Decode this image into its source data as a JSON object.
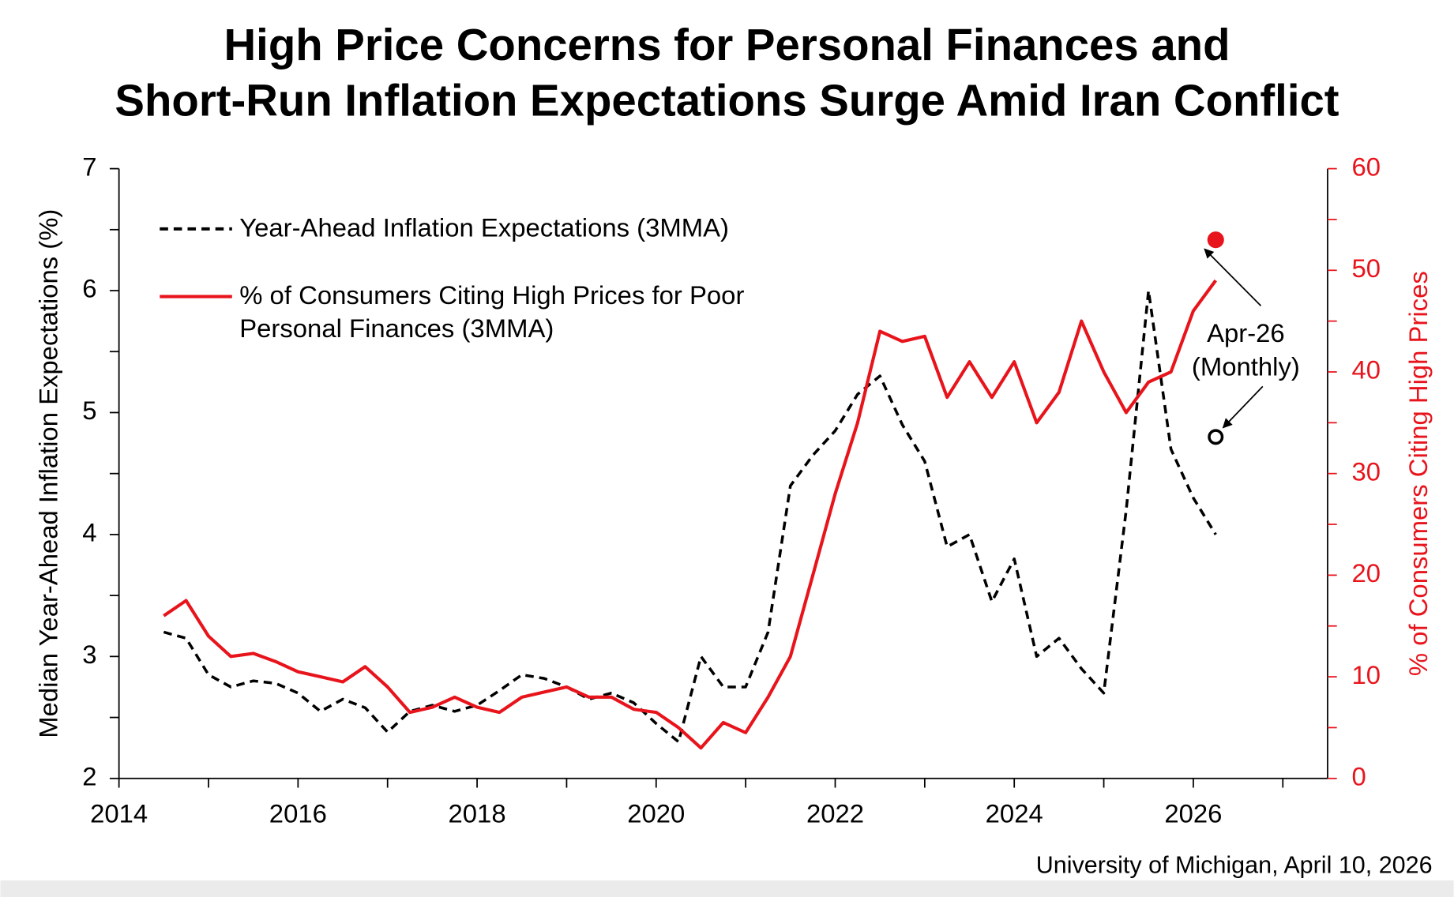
{
  "chart_data": {
    "type": "line",
    "title": [
      "High Price Concerns for Personal Finances and",
      "Short-Run Inflation Expectations Surge Amid Iran Conflict"
    ],
    "y_label": "Median Year-Ahead Inflation Expectations (%)",
    "y2_label": "% of Consumers Citing High Prices",
    "source": "University of Michigan, April 10, 2026",
    "x": [
      2014.5,
      2014.75,
      2015,
      2015.25,
      2015.5,
      2015.75,
      2016,
      2016.25,
      2016.5,
      2016.75,
      2017,
      2017.25,
      2017.5,
      2017.75,
      2018,
      2018.25,
      2018.5,
      2018.75,
      2019,
      2019.25,
      2019.5,
      2019.75,
      2020,
      2020.25,
      2020.5,
      2020.75,
      2021,
      2021.25,
      2021.5,
      2021.75,
      2022,
      2022.25,
      2022.5,
      2022.75,
      2023,
      2023.25,
      2023.5,
      2023.75,
      2024,
      2024.25,
      2024.5,
      2024.75,
      2025,
      2025.25,
      2025.5,
      2025.75,
      2026,
      2026.25
    ],
    "series": [
      {
        "name": "Year-Ahead Inflation Expectations (3MMA)",
        "color": "#000000",
        "style": "dashed",
        "axis": "y",
        "values": [
          3.2,
          3.15,
          2.85,
          2.75,
          2.8,
          2.78,
          2.7,
          2.55,
          2.65,
          2.58,
          2.38,
          2.55,
          2.6,
          2.55,
          2.6,
          2.72,
          2.85,
          2.82,
          2.75,
          2.65,
          2.7,
          2.62,
          2.45,
          2.3,
          3.0,
          2.75,
          2.75,
          3.2,
          4.4,
          4.65,
          4.85,
          5.15,
          5.3,
          4.9,
          4.6,
          3.9,
          4.0,
          3.45,
          3.8,
          3.0,
          3.15,
          2.9,
          2.7,
          4.2,
          6.0,
          4.7,
          4.3,
          4.0
        ]
      },
      {
        "name": "% of Consumers Citing High Prices for Poor Personal Finances (3MMA)",
        "color": "#e8141c",
        "style": "solid",
        "axis": "y2",
        "values": [
          16,
          17.5,
          14,
          12,
          12.3,
          11.5,
          10.5,
          10,
          9.5,
          11,
          9,
          6.5,
          7,
          8,
          7,
          6.5,
          8,
          8.5,
          9,
          8,
          8,
          6.8,
          6.5,
          5,
          3,
          5.5,
          4.5,
          8,
          12,
          20,
          28,
          35,
          44,
          43,
          43.5,
          37.5,
          41,
          37.5,
          41,
          35,
          38,
          45,
          40,
          36,
          39,
          40,
          46,
          49
        ]
      }
    ],
    "annotation": {
      "text": "Apr-26 (Monthly)",
      "x": 2026.25,
      "y": 4.8,
      "y2": 53
    },
    "xlim": [
      2014,
      2027.5
    ],
    "xticks": [
      2014,
      2016,
      2018,
      2020,
      2022,
      2024,
      2026
    ],
    "ylim": [
      2,
      7
    ],
    "yticks": [
      2,
      3,
      4,
      5,
      6,
      7
    ],
    "y2lim": [
      0,
      60
    ],
    "y2ticks": [
      0,
      10,
      20,
      30,
      40,
      50,
      60
    ],
    "y2_color": "#e8141c"
  }
}
